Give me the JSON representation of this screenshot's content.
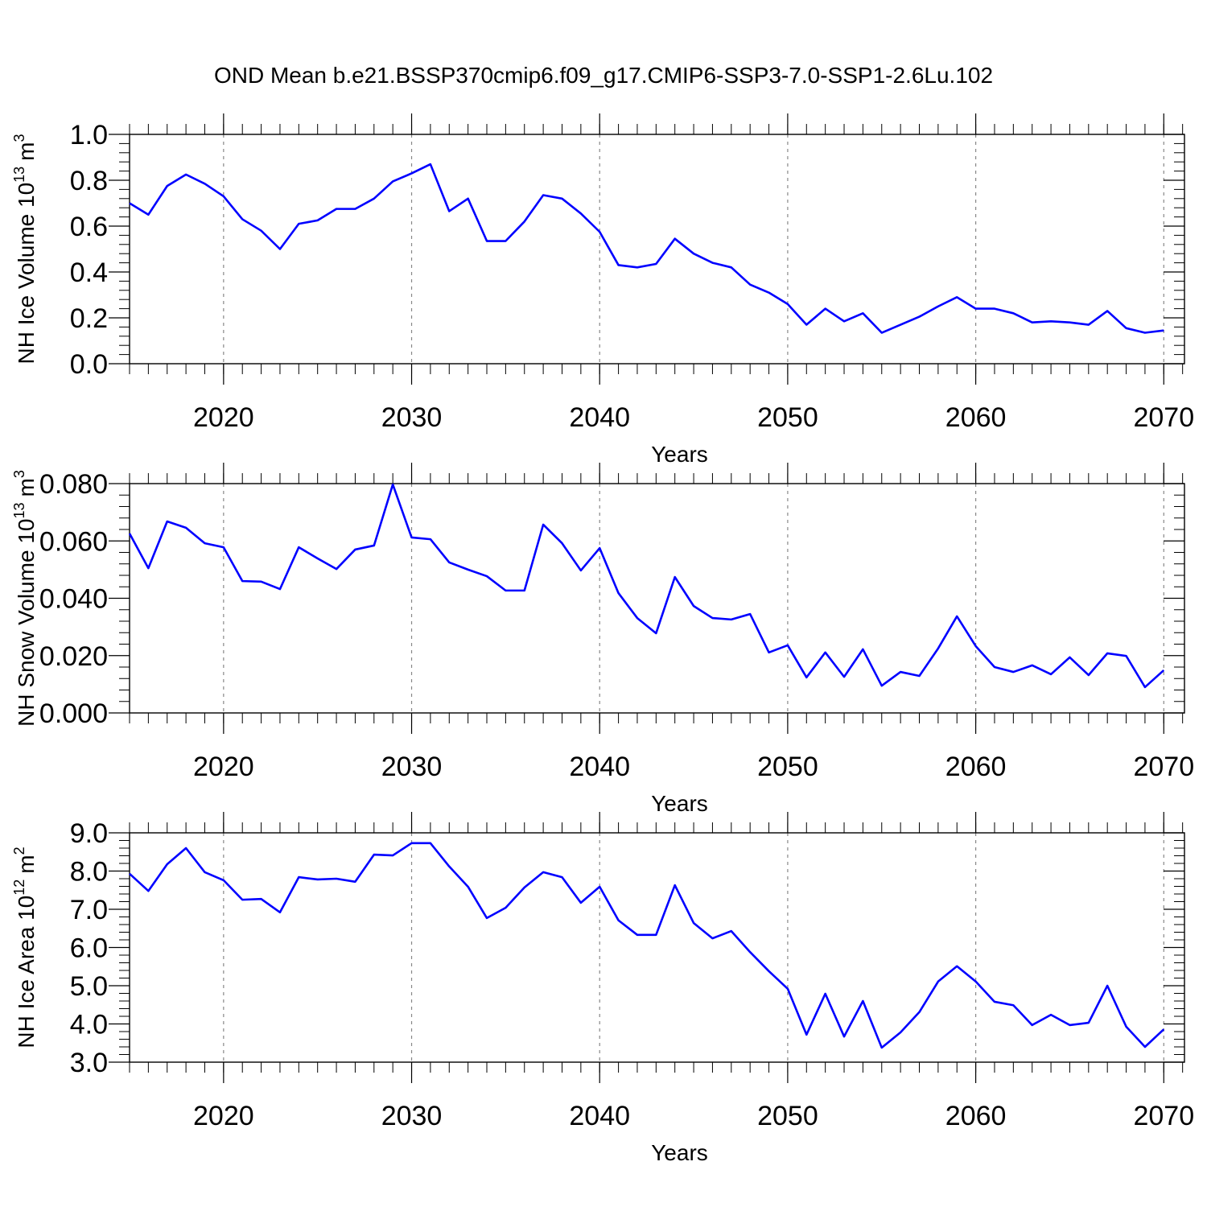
{
  "chart_data": [
    {
      "type": "line",
      "title": "OND Mean b.e21.BSSP370cmip6.f09_g17.CMIP6-SSP3-7.0-SSP1-2.6Lu.102",
      "ylabel": "NH Ice Volume 10",
      "ylabel_exp": "13",
      "ylabel_unit": "m",
      "ylabel_unit_exp": "3",
      "xlabel": "Years",
      "x": [
        2015,
        2016,
        2017,
        2018,
        2019,
        2020,
        2021,
        2022,
        2023,
        2024,
        2025,
        2026,
        2027,
        2028,
        2029,
        2030,
        2031,
        2032,
        2033,
        2034,
        2035,
        2036,
        2037,
        2038,
        2039,
        2040,
        2041,
        2042,
        2043,
        2044,
        2045,
        2046,
        2047,
        2048,
        2049,
        2050,
        2051,
        2052,
        2053,
        2054,
        2055,
        2056,
        2057,
        2058,
        2059,
        2060,
        2061,
        2062,
        2063,
        2064,
        2065,
        2066,
        2067,
        2068,
        2069,
        2070
      ],
      "series": [
        {
          "color": "#0000ff",
          "values": [
            0.7,
            0.65,
            0.775,
            0.825,
            0.785,
            0.73,
            0.63,
            0.58,
            0.5,
            0.61,
            0.625,
            0.675,
            0.675,
            0.72,
            0.795,
            0.83,
            0.87,
            0.665,
            0.72,
            0.535,
            0.535,
            0.62,
            0.735,
            0.72,
            0.655,
            0.575,
            0.43,
            0.42,
            0.435,
            0.545,
            0.48,
            0.44,
            0.42,
            0.345,
            0.31,
            0.26,
            0.17,
            0.24,
            0.185,
            0.22,
            0.135,
            0.17,
            0.205,
            0.25,
            0.29,
            0.24,
            0.24,
            0.22,
            0.18,
            0.185,
            0.18,
            0.17,
            0.23,
            0.155,
            0.135,
            0.145
          ]
        }
      ],
      "xlim": [
        2015,
        2071.1
      ],
      "xticks": [
        2020,
        2030,
        2040,
        2050,
        2060,
        2070
      ],
      "ylim": [
        0,
        1
      ],
      "yticks": [
        {
          "value": 0,
          "label": "0.0"
        },
        0.2,
        0.4,
        0.6,
        0.8,
        {
          "value": 1,
          "label": "1.0"
        }
      ],
      "grid": "x-dashed"
    },
    {
      "type": "line",
      "ylabel": "NH Snow Volume 10",
      "ylabel_exp": "13",
      "ylabel_unit": "m",
      "ylabel_unit_exp": "3",
      "xlabel": "Years",
      "x": [
        2015,
        2016,
        2017,
        2018,
        2019,
        2020,
        2021,
        2022,
        2023,
        2024,
        2025,
        2026,
        2027,
        2028,
        2029,
        2030,
        2031,
        2032,
        2033,
        2034,
        2035,
        2036,
        2037,
        2038,
        2039,
        2040,
        2041,
        2042,
        2043,
        2044,
        2045,
        2046,
        2047,
        2048,
        2049,
        2050,
        2051,
        2052,
        2053,
        2054,
        2055,
        2056,
        2057,
        2058,
        2059,
        2060,
        2061,
        2062,
        2063,
        2064,
        2065,
        2066,
        2067,
        2068,
        2069,
        2070
      ],
      "series": [
        {
          "color": "#0000ff",
          "values": [
            0.0626,
            0.0505,
            0.0668,
            0.0646,
            0.0592,
            0.0578,
            0.046,
            0.0458,
            0.0432,
            0.0578,
            0.0539,
            0.0502,
            0.057,
            0.0584,
            0.0797,
            0.0612,
            0.0606,
            0.0525,
            0.05,
            0.0477,
            0.0427,
            0.0427,
            0.0657,
            0.0592,
            0.0497,
            0.0575,
            0.0418,
            0.0331,
            0.0278,
            0.0474,
            0.0373,
            0.0331,
            0.0326,
            0.0345,
            0.0211,
            0.0236,
            0.0124,
            0.0211,
            0.0126,
            0.0222,
            0.0095,
            0.0143,
            0.0129,
            0.0225,
            0.0337,
            0.0233,
            0.016,
            0.0143,
            0.0166,
            0.0135,
            0.0194,
            0.0132,
            0.0208,
            0.0199,
            0.009,
            0.0149
          ]
        }
      ],
      "xlim": [
        2015,
        2071.1
      ],
      "xticks": [
        2020,
        2030,
        2040,
        2050,
        2060,
        2070
      ],
      "ylim": [
        0,
        0.08
      ],
      "yticks": [
        {
          "value": 0,
          "label": "0.000"
        },
        {
          "value": 0.02,
          "label": "0.020"
        },
        {
          "value": 0.04,
          "label": "0.040"
        },
        {
          "value": 0.06,
          "label": "0.060"
        },
        {
          "value": 0.08,
          "label": "0.080"
        }
      ],
      "grid": "x-dashed"
    },
    {
      "type": "line",
      "ylabel": "NH Ice Area 10",
      "ylabel_exp": "12",
      "ylabel_unit": "m",
      "ylabel_unit_exp": "2",
      "xlabel": "Years",
      "x": [
        2015,
        2016,
        2017,
        2018,
        2019,
        2020,
        2021,
        2022,
        2023,
        2024,
        2025,
        2026,
        2027,
        2028,
        2029,
        2030,
        2031,
        2032,
        2033,
        2034,
        2035,
        2036,
        2037,
        2038,
        2039,
        2040,
        2041,
        2042,
        2043,
        2044,
        2045,
        2046,
        2047,
        2048,
        2049,
        2050,
        2051,
        2052,
        2053,
        2054,
        2055,
        2056,
        2057,
        2058,
        2059,
        2060,
        2061,
        2062,
        2063,
        2064,
        2065,
        2066,
        2067,
        2068,
        2069,
        2070
      ],
      "series": [
        {
          "color": "#0000ff",
          "values": [
            7.93,
            7.48,
            8.18,
            8.6,
            7.97,
            7.76,
            7.25,
            7.27,
            6.92,
            7.84,
            7.78,
            7.8,
            7.72,
            8.43,
            8.41,
            8.73,
            8.73,
            8.12,
            7.59,
            6.77,
            7.04,
            7.57,
            7.97,
            7.84,
            7.17,
            7.59,
            6.71,
            6.33,
            6.33,
            7.63,
            6.64,
            6.24,
            6.43,
            5.88,
            5.38,
            4.92,
            3.72,
            4.79,
            3.67,
            4.6,
            3.38,
            3.78,
            4.31,
            5.11,
            5.51,
            5.11,
            4.58,
            4.49,
            3.97,
            4.24,
            3.97,
            4.03,
            5.0,
            3.93,
            3.4,
            3.86
          ]
        }
      ],
      "xlim": [
        2015,
        2071.1
      ],
      "xticks": [
        2020,
        2030,
        2040,
        2050,
        2060,
        2070
      ],
      "ylim": [
        3,
        9
      ],
      "yticks": [
        {
          "value": 3,
          "label": "3.0"
        },
        {
          "value": 4,
          "label": "4.0"
        },
        {
          "value": 5,
          "label": "5.0"
        },
        {
          "value": 6,
          "label": "6.0"
        },
        {
          "value": 7,
          "label": "7.0"
        },
        {
          "value": 8,
          "label": "8.0"
        },
        {
          "value": 9,
          "label": "9.0"
        }
      ],
      "grid": "x-dashed"
    }
  ]
}
